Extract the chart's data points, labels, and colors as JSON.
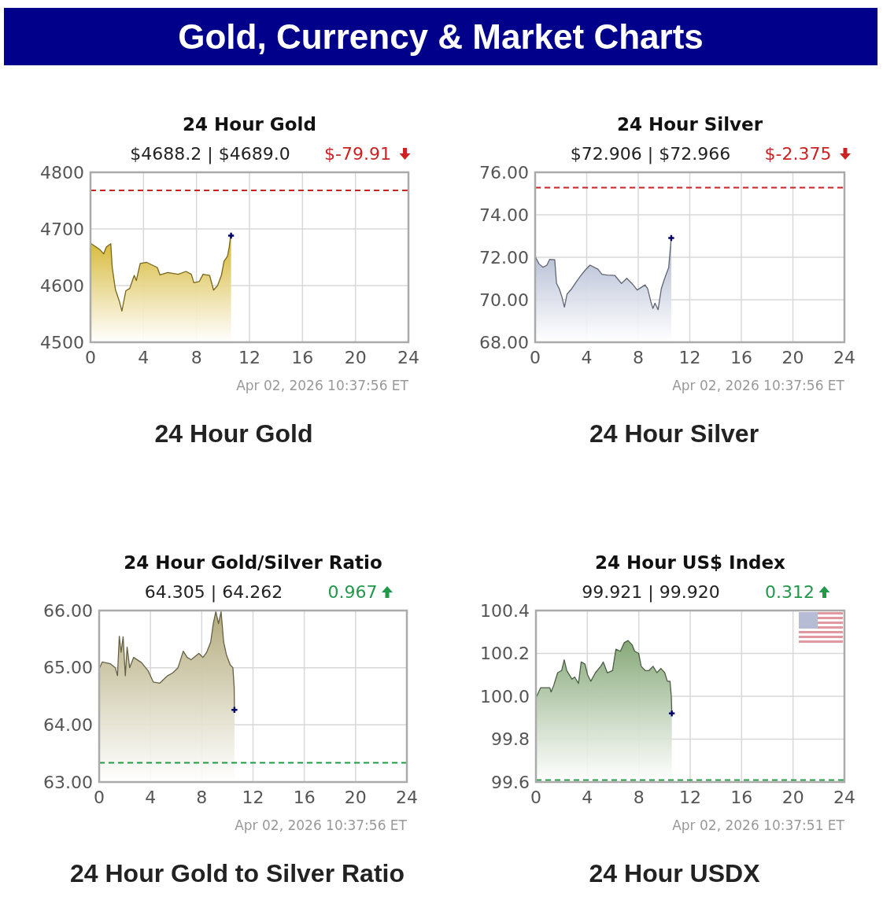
{
  "chart_data": [
    {
      "type": "other",
      "title": "Gold, Currency & Market Charts"
    },
    {
      "type": "area",
      "title": "24 Hour Gold",
      "subtitle": "$4688.2 | $4689.0",
      "annotations": [
        "$-79.91",
        "Apr 02, 2026 10:37:56 ET",
        "24 Hour Gold"
      ],
      "x": [
        0.06,
        0.69,
        0.99,
        1.19,
        1.53,
        1.64,
        1.88,
        2.17,
        2.37,
        2.67,
        2.96,
        3.3,
        3.46,
        3.75,
        4.25,
        5.04,
        5.24,
        5.83,
        6.62,
        7.21,
        7.61,
        7.8,
        8.2,
        8.5,
        8.99,
        9.29,
        9.59,
        9.88,
        10.08,
        10.34,
        10.47,
        10.57,
        10.61
      ],
      "series": [
        {
          "color": "#d4b52c",
          "values": [
            4674,
            4664,
            4656,
            4668,
            4674,
            4632,
            4593,
            4573,
            4555,
            4591,
            4595,
            4618,
            4609,
            4639,
            4641,
            4632,
            4619,
            4623,
            4620,
            4625,
            4620,
            4605,
            4607,
            4620,
            4618,
            4592,
            4600,
            4618,
            4643,
            4652,
            4668,
            4686,
            4688.2
          ]
        },
        {
          "type": "scatter",
          "marker": "cross",
          "color": "#000066",
          "x": [
            10.61
          ],
          "values": [
            4688.2
          ]
        }
      ],
      "xlim": [
        0,
        24
      ],
      "xticks": [
        0,
        4,
        8,
        12,
        16,
        20,
        24
      ],
      "ylim": [
        4500,
        4800
      ],
      "yticks": [
        4500,
        4600,
        4700,
        4800
      ],
      "grid": true,
      "ref_lines": [
        {
          "axis": "y",
          "value": 4768.1,
          "color": "#cc2222",
          "line_style": "dashed"
        }
      ]
    },
    {
      "type": "area",
      "title": "24 Hour Silver",
      "subtitle": "$72.906 | $72.966",
      "annotations": [
        "$-2.375",
        "Apr 02, 2026 10:37:56 ET",
        "24 Hour Silver"
      ],
      "x": [
        0.04,
        0.3,
        0.61,
        0.91,
        1.12,
        1.52,
        1.66,
        1.87,
        2.07,
        2.27,
        2.48,
        2.84,
        3.25,
        3.55,
        3.86,
        4.26,
        4.87,
        5.18,
        5.58,
        6.19,
        6.7,
        7.11,
        7.51,
        7.92,
        8.53,
        8.73,
        8.98,
        9.14,
        9.3,
        9.54,
        9.79,
        10.05,
        10.36,
        10.56
      ],
      "series": [
        {
          "color": "#a9b3cd",
          "values": [
            72.0,
            71.69,
            71.53,
            71.63,
            71.9,
            71.88,
            70.77,
            70.52,
            70.15,
            69.65,
            70.27,
            70.52,
            70.89,
            71.14,
            71.38,
            71.63,
            71.44,
            71.2,
            71.16,
            71.14,
            70.77,
            71.01,
            70.77,
            70.46,
            70.7,
            70.52,
            69.9,
            69.59,
            69.84,
            69.53,
            70.52,
            71.01,
            71.51,
            72.906
          ]
        },
        {
          "type": "scatter",
          "marker": "cross",
          "color": "#000066",
          "x": [
            10.56
          ],
          "values": [
            72.906
          ]
        }
      ],
      "xlim": [
        0,
        24
      ],
      "xticks": [
        0,
        4,
        8,
        12,
        16,
        20,
        24
      ],
      "ylim": [
        68,
        76
      ],
      "yticks": [
        {
          "value": 68,
          "label": "68.00"
        },
        {
          "value": 70,
          "label": "70.00"
        },
        {
          "value": 72,
          "label": "72.00"
        },
        {
          "value": 74,
          "label": "74.00"
        },
        {
          "value": 76,
          "label": "76.00"
        }
      ],
      "grid": true,
      "ref_lines": [
        {
          "axis": "y",
          "value": 75.281,
          "color": "#cc2222",
          "line_style": "dashed"
        }
      ]
    },
    {
      "type": "area",
      "title": "24 Hour Gold/Silver Ratio",
      "subtitle": "64.305 | 64.262",
      "annotations": [
        "0.967",
        "Apr 02, 2026 10:37:56 ET",
        "24 Hour Gold to Silver Ratio"
      ],
      "x": [
        0.04,
        0.24,
        0.86,
        1.26,
        1.43,
        1.57,
        1.71,
        1.87,
        2.04,
        2.18,
        2.38,
        2.69,
        3.3,
        3.81,
        4.22,
        4.73,
        5.34,
        5.74,
        6.15,
        6.56,
        6.87,
        7.17,
        7.78,
        8.09,
        8.39,
        8.7,
        8.9,
        9.1,
        9.31,
        9.51,
        9.71,
        9.92,
        10.22,
        10.43,
        10.53,
        10.55
      ],
      "series": [
        {
          "color": "#b3ab7c",
          "values": [
            65.0,
            65.1,
            65.07,
            65.0,
            64.86,
            65.55,
            65.27,
            65.54,
            64.86,
            65.36,
            65.0,
            65.18,
            65.09,
            64.95,
            64.75,
            64.73,
            64.86,
            64.91,
            65.0,
            65.29,
            65.18,
            65.14,
            65.25,
            65.18,
            65.27,
            65.45,
            65.77,
            65.98,
            65.77,
            65.98,
            65.45,
            65.23,
            65.05,
            65.0,
            64.66,
            64.262
          ]
        },
        {
          "type": "scatter",
          "marker": "cross",
          "color": "#000066",
          "x": [
            10.55
          ],
          "values": [
            64.262
          ]
        }
      ],
      "xlim": [
        0,
        24
      ],
      "xticks": [
        0,
        4,
        8,
        12,
        16,
        20,
        24
      ],
      "ylim": [
        63,
        66
      ],
      "yticks": [
        {
          "value": 63,
          "label": "63.00"
        },
        {
          "value": 64,
          "label": "64.00"
        },
        {
          "value": 65,
          "label": "65.00"
        },
        {
          "value": 66,
          "label": "66.00"
        }
      ],
      "grid": true,
      "ref_lines": [
        {
          "axis": "y",
          "value": 63.338,
          "color": "#229944",
          "line_style": "dashed"
        }
      ]
    },
    {
      "type": "area",
      "title": "24 Hour US$ Index",
      "subtitle": "99.921 | 99.920",
      "annotations": [
        "0.312",
        "Apr 02, 2026 10:37:51 ET",
        "24 Hour USDX"
      ],
      "x": [
        0.06,
        0.37,
        0.67,
        1.08,
        1.18,
        1.38,
        1.69,
        2.0,
        2.2,
        2.4,
        2.8,
        3.01,
        3.31,
        3.52,
        3.82,
        4.02,
        4.27,
        4.63,
        5.04,
        5.24,
        5.55,
        5.96,
        6.22,
        6.57,
        6.87,
        7.17,
        7.48,
        7.68,
        7.99,
        8.19,
        8.5,
        8.8,
        9.11,
        9.41,
        9.72,
        10.02,
        10.22,
        10.43,
        10.53,
        10.57
      ],
      "series": [
        {
          "color": "#86a878",
          "values": [
            100.0,
            100.04,
            100.04,
            100.04,
            100.02,
            100.05,
            100.11,
            100.12,
            100.17,
            100.12,
            100.08,
            100.09,
            100.06,
            100.16,
            100.15,
            100.1,
            100.07,
            100.11,
            100.14,
            100.16,
            100.11,
            100.12,
            100.22,
            100.21,
            100.25,
            100.26,
            100.24,
            100.21,
            100.2,
            100.14,
            100.12,
            100.12,
            100.14,
            100.11,
            100.13,
            100.11,
            100.07,
            100.07,
            100.0,
            99.92
          ]
        },
        {
          "type": "scatter",
          "marker": "cross",
          "color": "#000066",
          "x": [
            10.57
          ],
          "values": [
            99.92
          ]
        }
      ],
      "xlim": [
        0,
        24
      ],
      "xticks": [
        0,
        4,
        8,
        12,
        16,
        20,
        24
      ],
      "ylim": [
        99.6,
        100.4
      ],
      "yticks": [
        {
          "value": 99.6,
          "label": "99.6"
        },
        {
          "value": 99.8,
          "label": "99.8"
        },
        {
          "value": 100,
          "label": "100.0"
        },
        {
          "value": 100.2,
          "label": "100.2"
        },
        {
          "value": 100.4,
          "label": "100.4"
        }
      ],
      "grid": true,
      "ref_lines": [
        {
          "axis": "y",
          "value": 99.609,
          "color": "#229944",
          "line_style": "dashed"
        }
      ]
    }
  ]
}
